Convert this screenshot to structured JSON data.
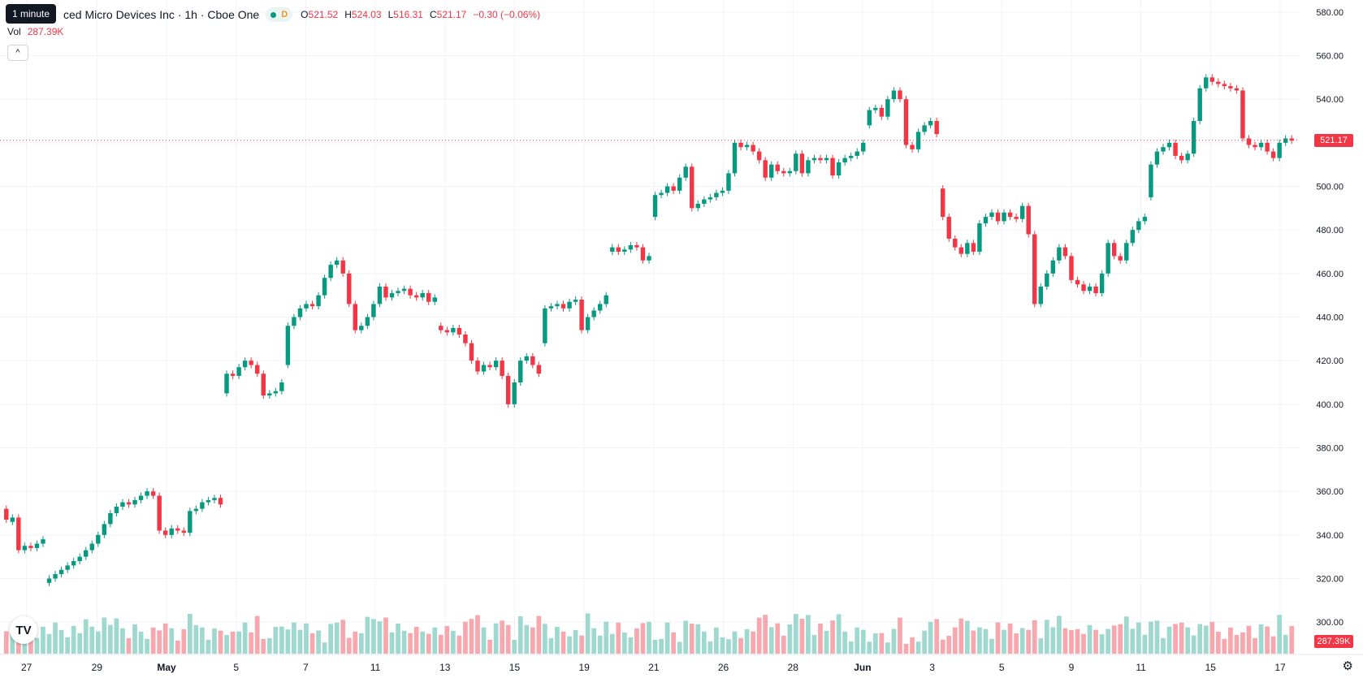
{
  "header": {
    "title": "ced Micro Devices Inc · 1h · Cboe One",
    "status_badge": "D",
    "tooltip": "1 minute",
    "ohlc": {
      "o_label": "O",
      "o_value": "521.52",
      "h_label": "H",
      "h_value": "524.03",
      "l_label": "L",
      "l_value": "516.31",
      "c_label": "C",
      "c_value": "521.17",
      "change": "−0.30 (−0.06%)"
    },
    "vol_label": "Vol",
    "vol_value": "287.39K",
    "collapse_icon": "^"
  },
  "price_tags": {
    "last_price": "521.17",
    "last_volume": "287.39K"
  },
  "logo_text": "TV",
  "settings_icon": "⚙",
  "colors": {
    "up": "#089981",
    "down": "#f23645",
    "up_vol": "#9fd8ce",
    "down_vol": "#f7a8ae",
    "grid": "#f0f3fa"
  },
  "chart_data": {
    "type": "candlestick",
    "symbol": "Advanced Micro Devices Inc",
    "interval": "1h",
    "exchange": "Cboe One",
    "ylim": [
      290,
      590
    ],
    "y_ticks": [
      "580.00",
      "560.00",
      "540.00",
      "520.00",
      "500.00",
      "480.00",
      "460.00",
      "440.00",
      "420.00",
      "400.00",
      "380.00",
      "360.00",
      "340.00",
      "320.00",
      "300.00"
    ],
    "x_ticks": [
      "27",
      "29",
      "May",
      "5",
      "7",
      "11",
      "13",
      "15",
      "19",
      "21",
      "26",
      "28",
      "Jun",
      "3",
      "5",
      "9",
      "11",
      "15",
      "17"
    ],
    "last_price": 521.17,
    "series": [
      {
        "session": "27",
        "points": [
          [
            352,
            347
          ],
          [
            346,
            348
          ],
          [
            348,
            333
          ],
          [
            333,
            335
          ],
          [
            335,
            334
          ],
          [
            334,
            336
          ],
          [
            336,
            338
          ]
        ]
      },
      {
        "session": "29",
        "points": [
          [
            318,
            320
          ],
          [
            320,
            322
          ],
          [
            322,
            324
          ],
          [
            324,
            326
          ],
          [
            326,
            328
          ],
          [
            328,
            330
          ],
          [
            330,
            333
          ],
          [
            333,
            336
          ],
          [
            336,
            340
          ],
          [
            340,
            345
          ],
          [
            345,
            350
          ],
          [
            350,
            353
          ],
          [
            353,
            355
          ],
          [
            355,
            354
          ],
          [
            354,
            356
          ],
          [
            356,
            358
          ],
          [
            358,
            360
          ],
          [
            360,
            358
          ]
        ]
      },
      {
        "session": "May",
        "points": [
          [
            358,
            342
          ],
          [
            342,
            340
          ],
          [
            340,
            343
          ],
          [
            343,
            342
          ],
          [
            342,
            341
          ],
          [
            341,
            351
          ],
          [
            351,
            352
          ],
          [
            352,
            355
          ],
          [
            355,
            356
          ],
          [
            356,
            357
          ],
          [
            357,
            354
          ]
        ]
      },
      {
        "session": "5",
        "points": [
          [
            405,
            414
          ],
          [
            414,
            413
          ],
          [
            413,
            417
          ],
          [
            417,
            420
          ],
          [
            420,
            418
          ],
          [
            418,
            414
          ],
          [
            414,
            404
          ],
          [
            404,
            405
          ],
          [
            405,
            406
          ],
          [
            406,
            410
          ]
        ]
      },
      {
        "session": "7",
        "points": [
          [
            418,
            436
          ],
          [
            436,
            440
          ],
          [
            440,
            444
          ],
          [
            444,
            446
          ],
          [
            446,
            445
          ],
          [
            445,
            450
          ],
          [
            450,
            458
          ],
          [
            458,
            464
          ],
          [
            464,
            466
          ],
          [
            466,
            460
          ],
          [
            460,
            446
          ],
          [
            446,
            434
          ],
          [
            434,
            436
          ],
          [
            436,
            440
          ],
          [
            440,
            446
          ],
          [
            446,
            454
          ],
          [
            454,
            449
          ],
          [
            449,
            451
          ],
          [
            451,
            452
          ],
          [
            452,
            453
          ],
          [
            453,
            450
          ],
          [
            450,
            449
          ],
          [
            449,
            451
          ],
          [
            451,
            447
          ],
          [
            447,
            449
          ]
        ]
      },
      {
        "session": "13",
        "points": [
          [
            436,
            434
          ],
          [
            434,
            433
          ],
          [
            433,
            435
          ],
          [
            435,
            432
          ],
          [
            432,
            428
          ],
          [
            428,
            420
          ],
          [
            420,
            415
          ],
          [
            415,
            418
          ],
          [
            418,
            417
          ],
          [
            417,
            420
          ],
          [
            420,
            413
          ],
          [
            413,
            400
          ],
          [
            400,
            410
          ],
          [
            410,
            420
          ],
          [
            420,
            422
          ],
          [
            422,
            418
          ],
          [
            418,
            414
          ]
        ]
      },
      {
        "session": "19",
        "points": [
          [
            428,
            444
          ],
          [
            444,
            445
          ],
          [
            445,
            446
          ],
          [
            446,
            444
          ],
          [
            444,
            447
          ],
          [
            447,
            448
          ],
          [
            448,
            434
          ],
          [
            434,
            440
          ],
          [
            440,
            443
          ],
          [
            443,
            446
          ],
          [
            446,
            450
          ]
        ]
      },
      {
        "session": "21",
        "points": [
          [
            470,
            472
          ],
          [
            472,
            470
          ],
          [
            470,
            471
          ],
          [
            471,
            473
          ],
          [
            473,
            472
          ],
          [
            472,
            466
          ],
          [
            466,
            468
          ]
        ]
      },
      {
        "session": "26",
        "points": [
          [
            486,
            496
          ],
          [
            496,
            497
          ],
          [
            497,
            500
          ],
          [
            500,
            498
          ],
          [
            498,
            504
          ],
          [
            504,
            509
          ],
          [
            509,
            490
          ],
          [
            490,
            492
          ],
          [
            492,
            494
          ],
          [
            494,
            495
          ],
          [
            495,
            497
          ],
          [
            497,
            498
          ],
          [
            498,
            506
          ],
          [
            506,
            520
          ],
          [
            520,
            518
          ],
          [
            518,
            519
          ],
          [
            519,
            516
          ],
          [
            516,
            512
          ],
          [
            512,
            504
          ],
          [
            504,
            510
          ],
          [
            510,
            507
          ],
          [
            507,
            506
          ],
          [
            506,
            507
          ],
          [
            507,
            515
          ],
          [
            515,
            506
          ],
          [
            506,
            512
          ],
          [
            512,
            513
          ],
          [
            513,
            512
          ],
          [
            512,
            513
          ],
          [
            513,
            505
          ],
          [
            505,
            511
          ],
          [
            511,
            513
          ],
          [
            513,
            514
          ],
          [
            514,
            516
          ],
          [
            516,
            520
          ]
        ]
      },
      {
        "session": "3",
        "points": [
          [
            528,
            535
          ],
          [
            535,
            536
          ],
          [
            536,
            532
          ],
          [
            532,
            540
          ],
          [
            540,
            544
          ],
          [
            544,
            540
          ],
          [
            540,
            519
          ],
          [
            519,
            517
          ],
          [
            517,
            525
          ],
          [
            525,
            528
          ],
          [
            528,
            530
          ],
          [
            530,
            524
          ]
        ]
      },
      {
        "session": "5",
        "points": [
          [
            499,
            486
          ],
          [
            486,
            476
          ],
          [
            476,
            472
          ],
          [
            472,
            469
          ],
          [
            469,
            474
          ],
          [
            474,
            470
          ],
          [
            470,
            483
          ],
          [
            483,
            486
          ],
          [
            486,
            488
          ],
          [
            488,
            484
          ],
          [
            484,
            488
          ],
          [
            488,
            486
          ],
          [
            486,
            485
          ],
          [
            485,
            491
          ],
          [
            491,
            478
          ],
          [
            478,
            446
          ],
          [
            446,
            454
          ],
          [
            454,
            460
          ],
          [
            460,
            466
          ],
          [
            466,
            472
          ],
          [
            472,
            468
          ],
          [
            468,
            457
          ],
          [
            457,
            455
          ],
          [
            455,
            452
          ],
          [
            452,
            454
          ],
          [
            454,
            451
          ],
          [
            451,
            460
          ],
          [
            460,
            474
          ],
          [
            474,
            468
          ],
          [
            468,
            466
          ],
          [
            466,
            474
          ],
          [
            474,
            480
          ],
          [
            480,
            484
          ],
          [
            484,
            486
          ]
        ]
      },
      {
        "session": "15",
        "points": [
          [
            495,
            510
          ],
          [
            510,
            516
          ],
          [
            516,
            518
          ],
          [
            518,
            520
          ],
          [
            520,
            514
          ],
          [
            514,
            512
          ],
          [
            512,
            515
          ],
          [
            515,
            530
          ],
          [
            530,
            545
          ],
          [
            545,
            550
          ],
          [
            550,
            548
          ],
          [
            548,
            547
          ],
          [
            547,
            546
          ],
          [
            546,
            545
          ],
          [
            545,
            544
          ],
          [
            544,
            522
          ],
          [
            522,
            519
          ],
          [
            519,
            518
          ],
          [
            518,
            520
          ],
          [
            520,
            516
          ],
          [
            516,
            513
          ],
          [
            513,
            520
          ],
          [
            520,
            522
          ],
          [
            522,
            521
          ]
        ]
      }
    ],
    "volume_series": "per-candle volume bars (thousands, approx.), colored by candle direction"
  }
}
